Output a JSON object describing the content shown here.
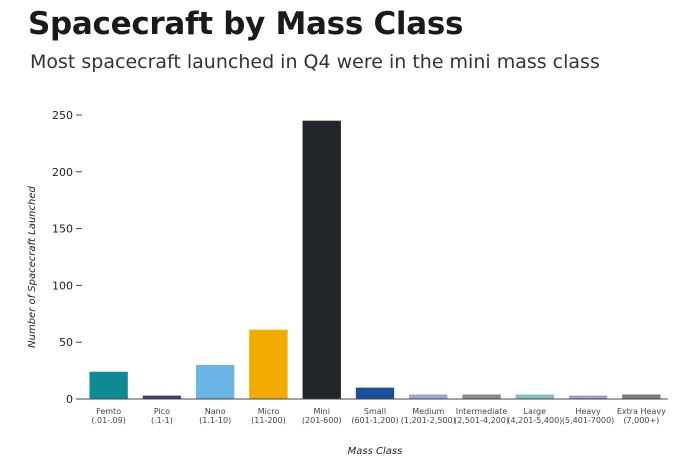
{
  "header": {
    "title": "Spacecraft by Mass Class",
    "subtitle": "Most spacecraft launched in Q4 were in the mini mass class"
  },
  "chart_data": {
    "type": "bar",
    "title": "Spacecraft by Mass Class",
    "subtitle": "Most spacecraft launched in Q4 were in the mini mass class",
    "xlabel": "Mass Class",
    "ylabel": "Number of Spacecraft Launched",
    "ylim": [
      0,
      250
    ],
    "yticks": [
      0,
      50,
      100,
      150,
      200,
      250
    ],
    "grid": false,
    "legend": "none",
    "categories": [
      {
        "name": "Femto",
        "range": "(.01-.09)"
      },
      {
        "name": "Pico",
        "range": "(.1-1)"
      },
      {
        "name": "Nano",
        "range": "(1.1-10)"
      },
      {
        "name": "Micro",
        "range": "(11-200)"
      },
      {
        "name": "Mini",
        "range": "(201-600)"
      },
      {
        "name": "Small",
        "range": "(601-1,200)"
      },
      {
        "name": "Medium",
        "range": "(1,201-2,500)"
      },
      {
        "name": "Intermediate",
        "range": "(2,501-4,200)"
      },
      {
        "name": "Large",
        "range": "(4,201-5,400)"
      },
      {
        "name": "Heavy",
        "range": "(5,401-7000)"
      },
      {
        "name": "Extra Heavy",
        "range": "(7,000+)"
      }
    ],
    "values": [
      24,
      3,
      30,
      61,
      245,
      10,
      4,
      4,
      4,
      3,
      4
    ],
    "colors": [
      "#0f8a94",
      "#4a3a7a",
      "#6ab4e6",
      "#f2ab00",
      "#222529",
      "#1b4f9c",
      "#9aa7dd",
      "#8a8a8a",
      "#7fc4c0",
      "#a99bd0",
      "#7d7d7d"
    ]
  }
}
